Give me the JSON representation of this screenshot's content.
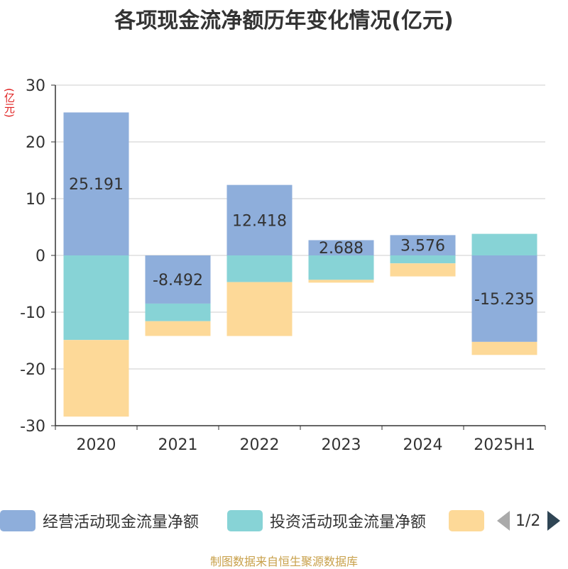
{
  "title": "各项现金流净额历年变化情况(亿元)",
  "unit_label": "(亿元)",
  "source": "制图数据来自恒生聚源数据库",
  "legend": {
    "items": [
      {
        "label": "经营活动现金流量净额",
        "color": "#8eaedb"
      },
      {
        "label": "投资活动现金流量净额",
        "color": "#87d3d6"
      },
      {
        "label": "",
        "color": "#fdd998"
      }
    ],
    "page": "1/2"
  },
  "chart_data": {
    "type": "bar",
    "stacked": true,
    "title": "各项现金流净额历年变化情况(亿元)",
    "ylabel": "(亿元)",
    "categories": [
      "2020",
      "2021",
      "2022",
      "2023",
      "2024",
      "2025H1"
    ],
    "ylim": [
      -30,
      30
    ],
    "yticks": [
      30,
      20,
      10,
      0,
      -10,
      -20,
      -30
    ],
    "grid": true,
    "legend_position": "bottom",
    "series": [
      {
        "name": "经营活动现金流量净额",
        "color": "#8eaedb",
        "values": [
          25.191,
          -8.492,
          12.418,
          2.688,
          3.576,
          -15.235
        ],
        "labels": [
          "25.191",
          "-8.492",
          "12.418",
          "2.688",
          "3.576",
          "-15.235"
        ]
      },
      {
        "name": "投资活动现金流量净额",
        "color": "#87d3d6",
        "values": [
          -14.9,
          -3.1,
          -4.7,
          -4.3,
          -1.4,
          3.8
        ]
      },
      {
        "color": "#fdd998",
        "values": [
          -13.5,
          -2.6,
          -9.5,
          -0.5,
          -2.3,
          -2.3
        ]
      }
    ]
  }
}
